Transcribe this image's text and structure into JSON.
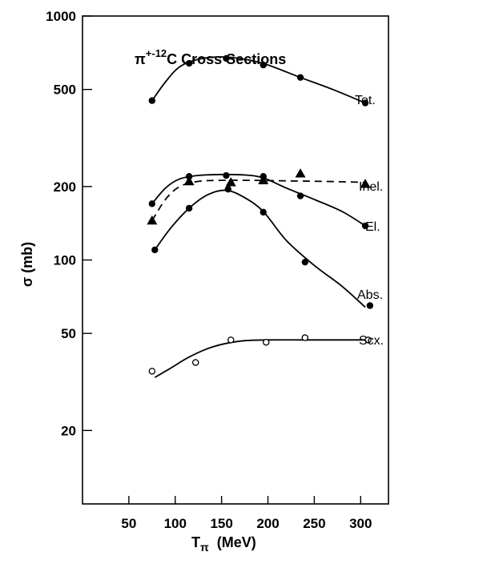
{
  "chart_data": {
    "type": "line",
    "title": {
      "prefix": "π",
      "superscript": "+-12",
      "suffix": "C   Cross Sections"
    },
    "xlabel": {
      "main": "T",
      "subscript": "π",
      "units": "(MeV)"
    },
    "ylabel": "σ (mb)",
    "xlim": [
      0,
      330
    ],
    "ylim": [
      10,
      1000
    ],
    "yscale": "log",
    "x_ticks": [
      50,
      100,
      150,
      200,
      250,
      300
    ],
    "x_tick_labels": [
      "50",
      "100",
      "150",
      "200",
      "250",
      "300"
    ],
    "y_ticks": [
      20,
      50,
      100,
      200,
      500,
      1000
    ],
    "y_tick_labels": [
      "20",
      "50",
      "100",
      "200",
      "500",
      "1000"
    ],
    "grid": false,
    "legend": "labels next to curves",
    "series": [
      {
        "name": "Tot.",
        "marker": "filled-circle",
        "line": "solid",
        "points": [
          [
            75,
            450
          ],
          [
            115,
            640
          ],
          [
            155,
            670
          ],
          [
            195,
            630
          ],
          [
            235,
            560
          ],
          [
            305,
            440
          ]
        ],
        "curve": [
          [
            75,
            450
          ],
          [
            90,
            540
          ],
          [
            105,
            620
          ],
          [
            125,
            665
          ],
          [
            150,
            680
          ],
          [
            175,
            665
          ],
          [
            200,
            630
          ],
          [
            235,
            560
          ],
          [
            270,
            500
          ],
          [
            305,
            440
          ]
        ]
      },
      {
        "name": "Inel.",
        "marker": "filled-circle",
        "line": "solid",
        "points": [
          [
            75,
            170
          ],
          [
            115,
            220
          ],
          [
            155,
            222
          ],
          [
            195,
            220
          ],
          [
            235,
            183
          ],
          [
            305,
            138
          ]
        ],
        "curve": [
          [
            75,
            170
          ],
          [
            90,
            198
          ],
          [
            105,
            215
          ],
          [
            125,
            222
          ],
          [
            150,
            224
          ],
          [
            175,
            223
          ],
          [
            195,
            217
          ],
          [
            220,
            197
          ],
          [
            250,
            177
          ],
          [
            280,
            158
          ],
          [
            305,
            138
          ]
        ]
      },
      {
        "name": "El.",
        "marker": "filled-triangle",
        "line": "dashed",
        "points": [
          [
            75,
            145
          ],
          [
            115,
            210
          ],
          [
            160,
            208
          ],
          [
            195,
            212
          ],
          [
            235,
            226
          ],
          [
            305,
            205
          ]
        ],
        "curve": [
          [
            75,
            145
          ],
          [
            90,
            178
          ],
          [
            105,
            200
          ],
          [
            125,
            210
          ],
          [
            150,
            212
          ],
          [
            180,
            212
          ],
          [
            220,
            211
          ],
          [
            260,
            210
          ],
          [
            305,
            208
          ]
        ]
      },
      {
        "name": "Abs.",
        "marker": "filled-circle",
        "line": "solid",
        "points": [
          [
            78,
            110
          ],
          [
            115,
            163
          ],
          [
            157,
            195
          ],
          [
            195,
            157
          ],
          [
            240,
            98
          ],
          [
            310,
            65
          ]
        ],
        "curve": [
          [
            78,
            110
          ],
          [
            95,
            135
          ],
          [
            115,
            163
          ],
          [
            135,
            185
          ],
          [
            155,
            193
          ],
          [
            175,
            180
          ],
          [
            195,
            158
          ],
          [
            220,
            120
          ],
          [
            250,
            95
          ],
          [
            280,
            78
          ],
          [
            305,
            64
          ]
        ]
      },
      {
        "name": "Scx.",
        "marker": "open-circle",
        "line": "solid",
        "points": [
          [
            75,
            35
          ],
          [
            122,
            38
          ],
          [
            160,
            47
          ],
          [
            198,
            46
          ],
          [
            240,
            48
          ],
          [
            308,
            47
          ]
        ],
        "curve": [
          [
            78,
            33
          ],
          [
            95,
            36
          ],
          [
            115,
            40
          ],
          [
            140,
            44
          ],
          [
            170,
            46.5
          ],
          [
            200,
            47
          ],
          [
            240,
            47
          ],
          [
            280,
            47
          ],
          [
            310,
            47
          ]
        ]
      }
    ]
  }
}
